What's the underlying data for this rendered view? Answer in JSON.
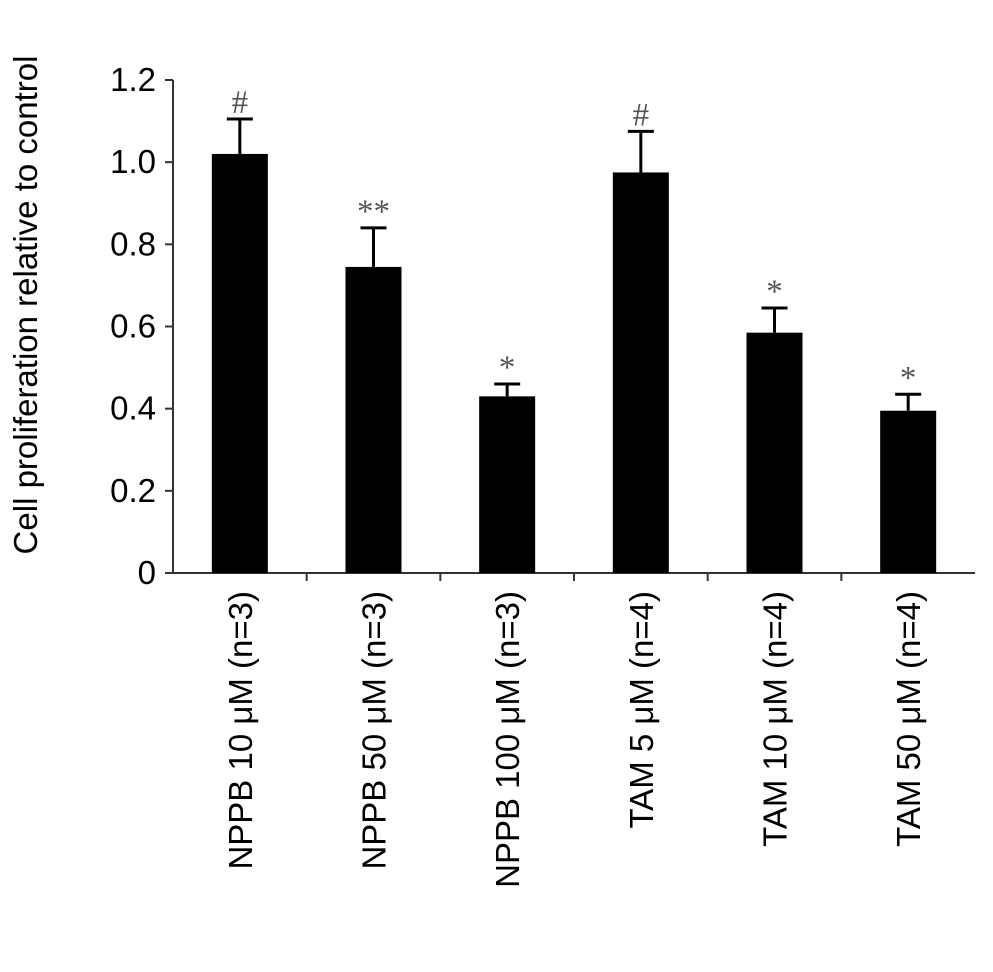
{
  "chart_data": {
    "type": "bar",
    "title": "",
    "xlabel": "",
    "ylabel": "Cell proliferation relative to control",
    "ylim": [
      0,
      1.2
    ],
    "yticks": [
      0,
      0.2,
      0.4,
      0.6,
      0.8,
      1.0,
      1.2
    ],
    "ytick_labels": [
      "0",
      "0.2",
      "0.4",
      "0.6",
      "0.8",
      "1.0",
      "1.2"
    ],
    "grid": false,
    "legend": "none",
    "categories": [
      "NPPB 10 μM (n=3)",
      "NPPB 50 μM (n=3)",
      "NPPB 100 μM (n=3)",
      "TAM 5 μM (n=4)",
      "TAM 10 μM (n=4)",
      "TAM 50 μM (n=4)"
    ],
    "values": [
      1.02,
      0.745,
      0.43,
      0.975,
      0.585,
      0.395
    ],
    "errors": [
      0.085,
      0.095,
      0.03,
      0.1,
      0.06,
      0.04
    ],
    "annotations": [
      "#",
      "**",
      "*",
      "#",
      "*",
      "*"
    ],
    "colors": {
      "bar": "#000000",
      "axis": "#333333",
      "annotation": "#555555"
    }
  }
}
